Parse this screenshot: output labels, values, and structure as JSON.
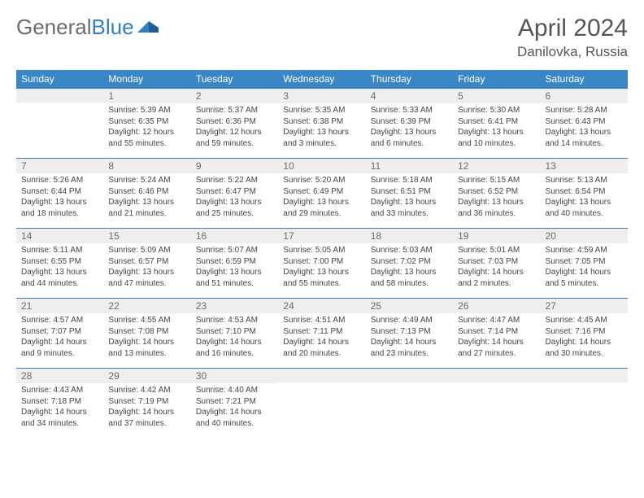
{
  "logo": {
    "text_gray": "General",
    "text_blue": "Blue"
  },
  "header": {
    "title": "April 2024",
    "location": "Danilovka, Russia"
  },
  "colors": {
    "header_bar": "#3a87c7",
    "header_text": "#ffffff",
    "row_border": "#2f7fc1",
    "daynum_bg": "#eeeeee",
    "daynum_text": "#6b6b6b",
    "body_text": "#444444",
    "page_bg": "#ffffff",
    "title_text": "#555555",
    "logo_gray": "#6b6b6b",
    "logo_blue": "#2f7fc1"
  },
  "typography": {
    "title_fontsize": 30,
    "location_fontsize": 17,
    "dow_fontsize": 12,
    "daynum_fontsize": 12,
    "body_fontsize": 10
  },
  "dow": [
    "Sunday",
    "Monday",
    "Tuesday",
    "Wednesday",
    "Thursday",
    "Friday",
    "Saturday"
  ],
  "weeks": [
    [
      null,
      {
        "n": "1",
        "sr": "5:39 AM",
        "ss": "6:35 PM",
        "dl": "12 hours and 55 minutes."
      },
      {
        "n": "2",
        "sr": "5:37 AM",
        "ss": "6:36 PM",
        "dl": "12 hours and 59 minutes."
      },
      {
        "n": "3",
        "sr": "5:35 AM",
        "ss": "6:38 PM",
        "dl": "13 hours and 3 minutes."
      },
      {
        "n": "4",
        "sr": "5:33 AM",
        "ss": "6:39 PM",
        "dl": "13 hours and 6 minutes."
      },
      {
        "n": "5",
        "sr": "5:30 AM",
        "ss": "6:41 PM",
        "dl": "13 hours and 10 minutes."
      },
      {
        "n": "6",
        "sr": "5:28 AM",
        "ss": "6:43 PM",
        "dl": "13 hours and 14 minutes."
      }
    ],
    [
      {
        "n": "7",
        "sr": "5:26 AM",
        "ss": "6:44 PM",
        "dl": "13 hours and 18 minutes."
      },
      {
        "n": "8",
        "sr": "5:24 AM",
        "ss": "6:46 PM",
        "dl": "13 hours and 21 minutes."
      },
      {
        "n": "9",
        "sr": "5:22 AM",
        "ss": "6:47 PM",
        "dl": "13 hours and 25 minutes."
      },
      {
        "n": "10",
        "sr": "5:20 AM",
        "ss": "6:49 PM",
        "dl": "13 hours and 29 minutes."
      },
      {
        "n": "11",
        "sr": "5:18 AM",
        "ss": "6:51 PM",
        "dl": "13 hours and 33 minutes."
      },
      {
        "n": "12",
        "sr": "5:15 AM",
        "ss": "6:52 PM",
        "dl": "13 hours and 36 minutes."
      },
      {
        "n": "13",
        "sr": "5:13 AM",
        "ss": "6:54 PM",
        "dl": "13 hours and 40 minutes."
      }
    ],
    [
      {
        "n": "14",
        "sr": "5:11 AM",
        "ss": "6:55 PM",
        "dl": "13 hours and 44 minutes."
      },
      {
        "n": "15",
        "sr": "5:09 AM",
        "ss": "6:57 PM",
        "dl": "13 hours and 47 minutes."
      },
      {
        "n": "16",
        "sr": "5:07 AM",
        "ss": "6:59 PM",
        "dl": "13 hours and 51 minutes."
      },
      {
        "n": "17",
        "sr": "5:05 AM",
        "ss": "7:00 PM",
        "dl": "13 hours and 55 minutes."
      },
      {
        "n": "18",
        "sr": "5:03 AM",
        "ss": "7:02 PM",
        "dl": "13 hours and 58 minutes."
      },
      {
        "n": "19",
        "sr": "5:01 AM",
        "ss": "7:03 PM",
        "dl": "14 hours and 2 minutes."
      },
      {
        "n": "20",
        "sr": "4:59 AM",
        "ss": "7:05 PM",
        "dl": "14 hours and 5 minutes."
      }
    ],
    [
      {
        "n": "21",
        "sr": "4:57 AM",
        "ss": "7:07 PM",
        "dl": "14 hours and 9 minutes."
      },
      {
        "n": "22",
        "sr": "4:55 AM",
        "ss": "7:08 PM",
        "dl": "14 hours and 13 minutes."
      },
      {
        "n": "23",
        "sr": "4:53 AM",
        "ss": "7:10 PM",
        "dl": "14 hours and 16 minutes."
      },
      {
        "n": "24",
        "sr": "4:51 AM",
        "ss": "7:11 PM",
        "dl": "14 hours and 20 minutes."
      },
      {
        "n": "25",
        "sr": "4:49 AM",
        "ss": "7:13 PM",
        "dl": "14 hours and 23 minutes."
      },
      {
        "n": "26",
        "sr": "4:47 AM",
        "ss": "7:14 PM",
        "dl": "14 hours and 27 minutes."
      },
      {
        "n": "27",
        "sr": "4:45 AM",
        "ss": "7:16 PM",
        "dl": "14 hours and 30 minutes."
      }
    ],
    [
      {
        "n": "28",
        "sr": "4:43 AM",
        "ss": "7:18 PM",
        "dl": "14 hours and 34 minutes."
      },
      {
        "n": "29",
        "sr": "4:42 AM",
        "ss": "7:19 PM",
        "dl": "14 hours and 37 minutes."
      },
      {
        "n": "30",
        "sr": "4:40 AM",
        "ss": "7:21 PM",
        "dl": "14 hours and 40 minutes."
      },
      null,
      null,
      null,
      null
    ]
  ],
  "labels": {
    "sunrise": "Sunrise:",
    "sunset": "Sunset:",
    "daylight": "Daylight:"
  }
}
